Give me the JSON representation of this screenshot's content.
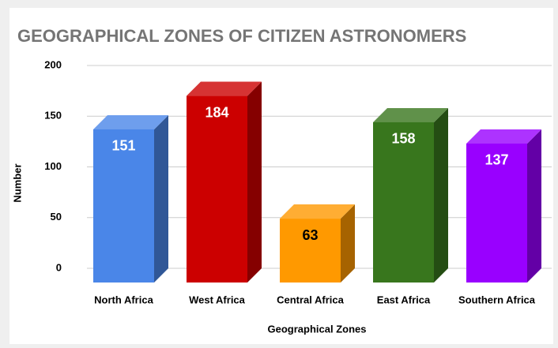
{
  "chart_data": {
    "type": "bar3d",
    "title": "GEOGRAPHICAL ZONES OF CITIZEN ASTRONOMERS",
    "xlabel": "Geographical Zones",
    "ylabel": "Number",
    "categories": [
      "North Africa",
      "West Africa",
      "Central Africa",
      "East Africa",
      "Southern Africa"
    ],
    "values": [
      151,
      184,
      63,
      158,
      137
    ],
    "colors": [
      "#4a86e8",
      "#cc0000",
      "#ff9900",
      "#38761d",
      "#9900ff"
    ],
    "ylim": [
      0,
      200
    ],
    "yticks": [
      0,
      50,
      100,
      150,
      200
    ],
    "grid": true
  }
}
